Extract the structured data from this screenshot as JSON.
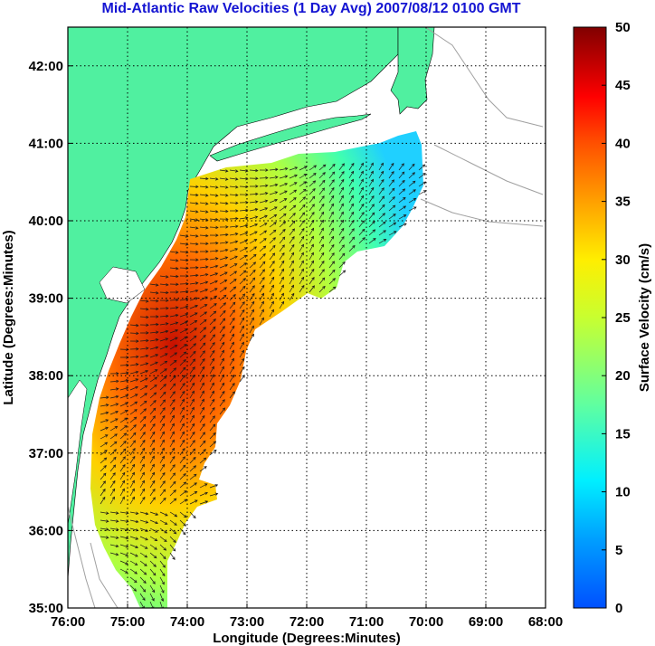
{
  "title": "Mid-Atlantic Raw Velocities (1 Day Avg) 2007/08/12 0100 GMT",
  "x_axis": {
    "label": "Longitude (Degrees:Minutes)",
    "ticks": [
      "76:00",
      "75:00",
      "74:00",
      "73:00",
      "72:00",
      "71:00",
      "70:00",
      "69:00",
      "68:00"
    ],
    "range_deg_west": [
      76,
      68
    ]
  },
  "y_axis": {
    "label": "Latitude (Degrees:Minutes)",
    "ticks": [
      "35:00",
      "36:00",
      "37:00",
      "38:00",
      "39:00",
      "40:00",
      "41:00",
      "42:00"
    ],
    "range_deg_north": [
      35,
      42.5
    ]
  },
  "colorbar": {
    "label": "Surface Velocity (cm/s)",
    "ticks": [
      "0",
      "5",
      "10",
      "15",
      "20",
      "25",
      "30",
      "35",
      "40",
      "45",
      "50"
    ],
    "range": [
      0,
      50
    ],
    "colormap": "jet"
  },
  "colors": {
    "land": "#50f0a0",
    "title": "#1414d2",
    "bathymetry": "#a0a0a0",
    "grid": "#000000"
  }
}
